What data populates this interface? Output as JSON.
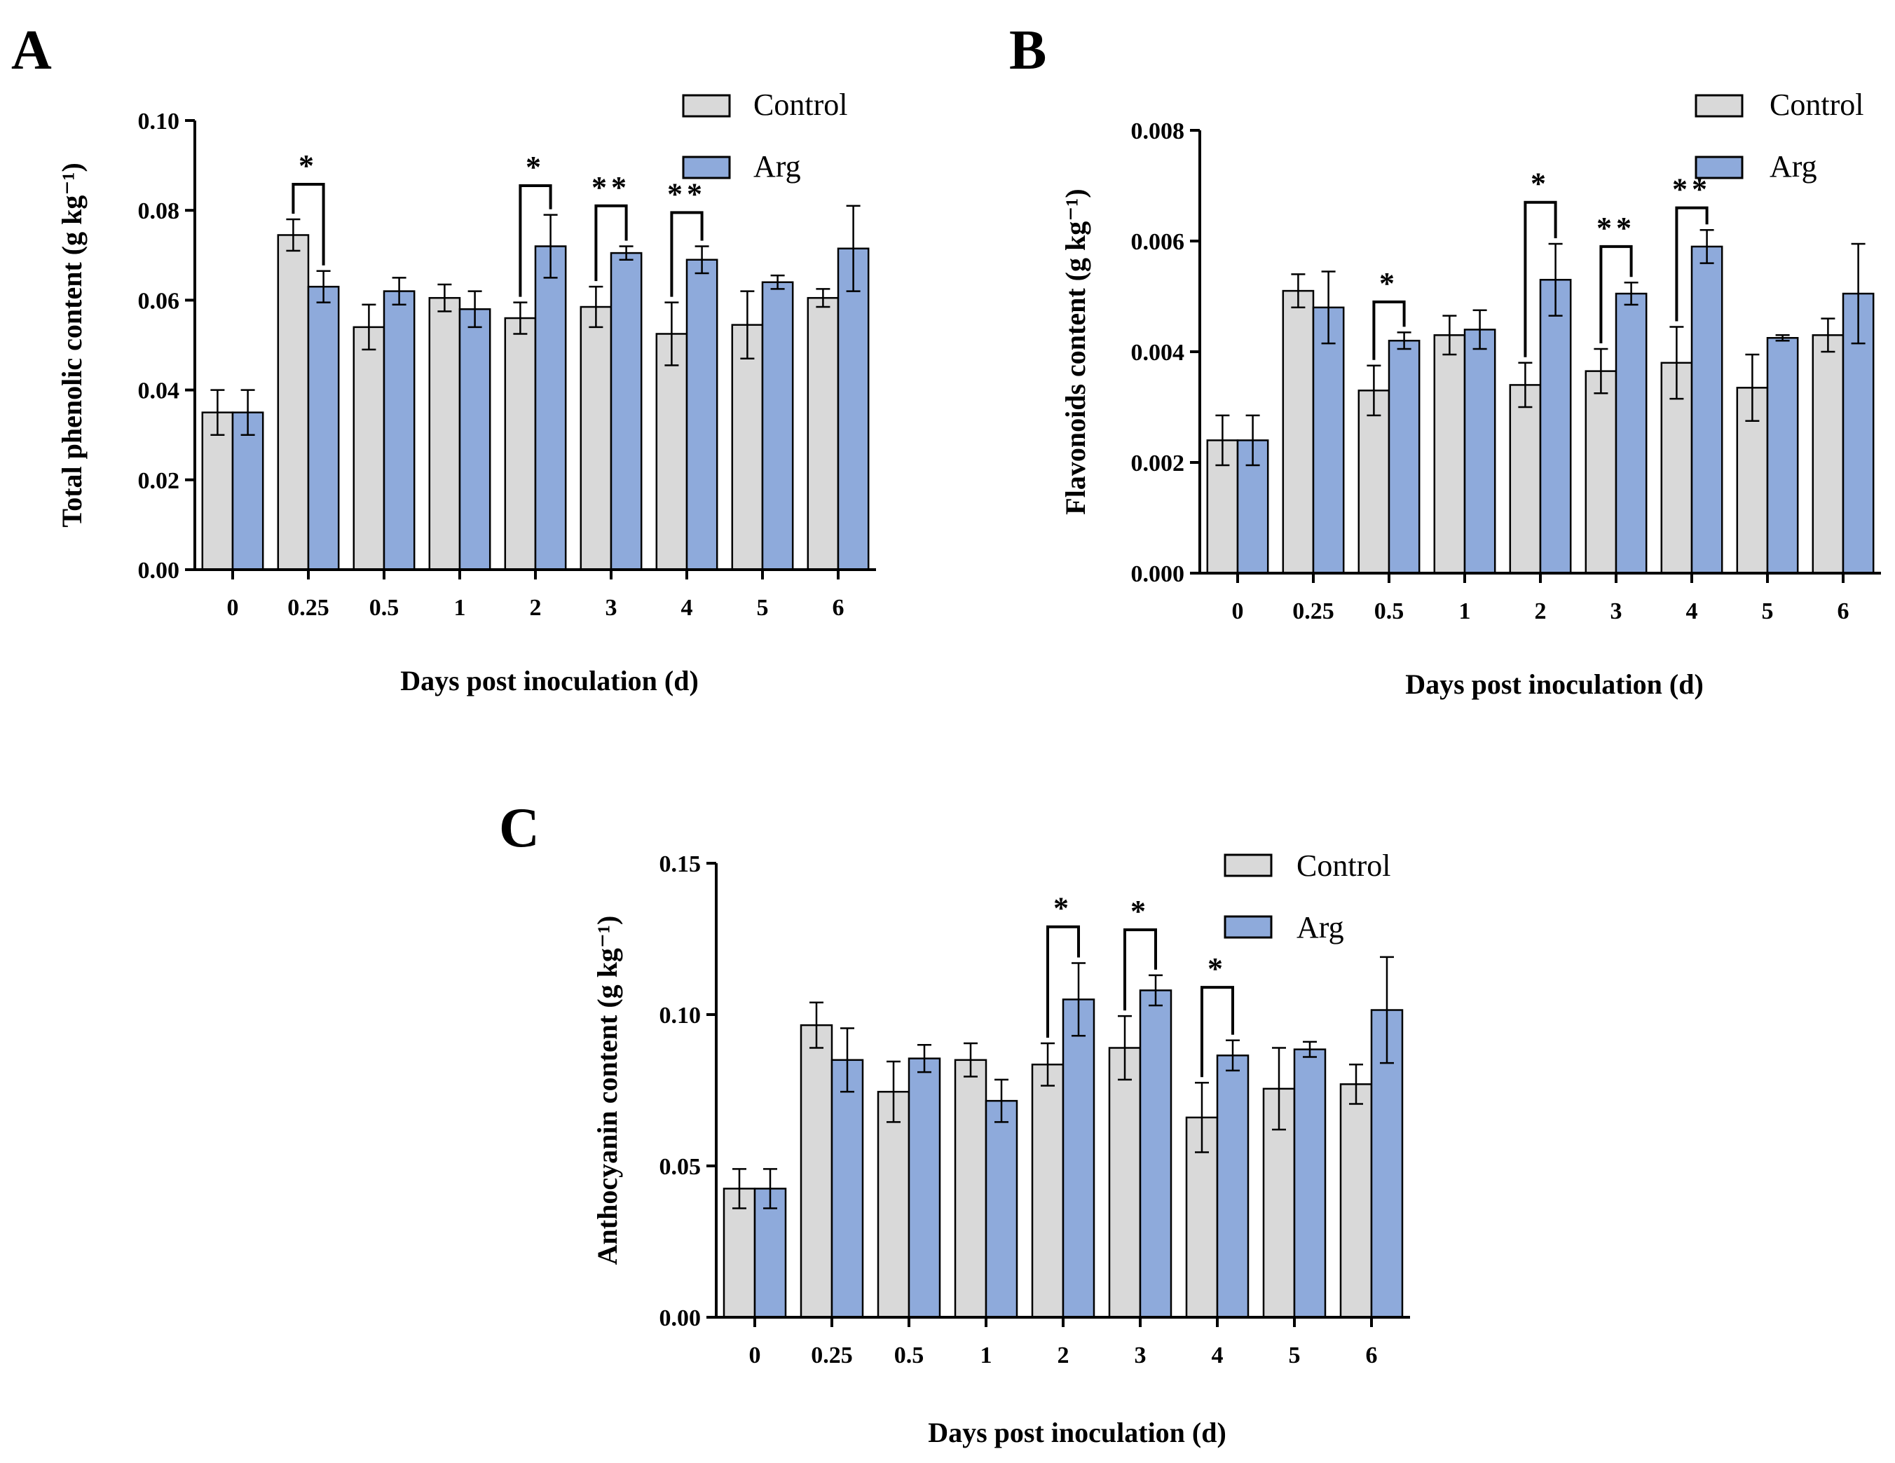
{
  "figure": {
    "panels": [
      {
        "letter": "A"
      },
      {
        "letter": "B"
      },
      {
        "letter": "C"
      }
    ]
  },
  "chart_data": [
    {
      "type": "bar",
      "panel": "A",
      "title": "",
      "xlabel": "Days post inoculation (d)",
      "ylabel": "Total phenolic content (g kg⁻¹)",
      "ylim": [
        0,
        0.1
      ],
      "yticks": [
        0,
        0.02,
        0.04,
        0.06,
        0.08,
        0.1
      ],
      "ytick_labels": [
        "0.00",
        "0.02",
        "0.04",
        "0.06",
        "0.08",
        "0.10"
      ],
      "categories": [
        "0",
        "0.25",
        "0.5",
        "1",
        "2",
        "3",
        "4",
        "5",
        "6"
      ],
      "legend": {
        "placement": "top-right",
        "entries": [
          "Control",
          "Arg"
        ]
      },
      "series": [
        {
          "name": "Control",
          "color": "#d9d9d9",
          "values": [
            0.035,
            0.0745,
            0.054,
            0.0605,
            0.056,
            0.0585,
            0.0525,
            0.0545,
            0.0605
          ],
          "errors": [
            0.005,
            0.0035,
            0.005,
            0.003,
            0.0035,
            0.0045,
            0.007,
            0.0075,
            0.002
          ]
        },
        {
          "name": "Arg",
          "color": "#8eaadb",
          "values": [
            0.035,
            0.063,
            0.062,
            0.058,
            0.072,
            0.0705,
            0.069,
            0.064,
            0.0715
          ],
          "errors": [
            0.005,
            0.0035,
            0.003,
            0.004,
            0.007,
            0.0015,
            0.003,
            0.0015,
            0.0095
          ]
        }
      ],
      "significance": [
        {
          "category": "0.25",
          "label": "*",
          "top": 0.0858
        },
        {
          "category": "2",
          "label": "*",
          "top": 0.0855
        },
        {
          "category": "3",
          "label": "**",
          "top": 0.081
        },
        {
          "category": "4",
          "label": "**",
          "top": 0.0795
        }
      ]
    },
    {
      "type": "bar",
      "panel": "B",
      "title": "",
      "xlabel": "Days post inoculation (d)",
      "ylabel": "Flavonoids content (g kg⁻¹)",
      "ylim": [
        0,
        0.008
      ],
      "yticks": [
        0,
        0.002,
        0.004,
        0.006,
        0.008
      ],
      "ytick_labels": [
        "0.000",
        "0.002",
        "0.004",
        "0.006",
        "0.008"
      ],
      "categories": [
        "0",
        "0.25",
        "0.5",
        "1",
        "2",
        "3",
        "4",
        "5",
        "6"
      ],
      "legend": {
        "placement": "top-right",
        "entries": [
          "Control",
          "Arg"
        ]
      },
      "series": [
        {
          "name": "Control",
          "color": "#d9d9d9",
          "values": [
            0.0024,
            0.0051,
            0.0033,
            0.0043,
            0.0034,
            0.00365,
            0.0038,
            0.00335,
            0.0043
          ],
          "errors": [
            0.00045,
            0.0003,
            0.00045,
            0.00035,
            0.0004,
            0.0004,
            0.00065,
            0.0006,
            0.0003
          ]
        },
        {
          "name": "Arg",
          "color": "#8eaadb",
          "values": [
            0.0024,
            0.0048,
            0.0042,
            0.0044,
            0.0053,
            0.00505,
            0.0059,
            0.00425,
            0.00505
          ],
          "errors": [
            0.00045,
            0.00065,
            0.00015,
            0.00035,
            0.00065,
            0.0002,
            0.0003,
            5e-05,
            0.0009
          ]
        }
      ],
      "significance": [
        {
          "category": "0.5",
          "label": "*",
          "top": 0.0049
        },
        {
          "category": "2",
          "label": "*",
          "top": 0.0067
        },
        {
          "category": "3",
          "label": "**",
          "top": 0.0059
        },
        {
          "category": "4",
          "label": "**",
          "top": 0.0066
        }
      ]
    },
    {
      "type": "bar",
      "panel": "C",
      "title": "",
      "xlabel": "Days post inoculation (d)",
      "ylabel": "Anthocyanin content (g kg⁻¹)",
      "ylim": [
        0,
        0.15
      ],
      "yticks": [
        0,
        0.05,
        0.1,
        0.15
      ],
      "ytick_labels": [
        "0.00",
        "0.05",
        "0.10",
        "0.15"
      ],
      "categories": [
        "0",
        "0.25",
        "0.5",
        "1",
        "2",
        "3",
        "4",
        "5",
        "6"
      ],
      "legend": {
        "placement": "top-right",
        "entries": [
          "Control",
          "Arg"
        ]
      },
      "series": [
        {
          "name": "Control",
          "color": "#d9d9d9",
          "values": [
            0.0425,
            0.0965,
            0.0745,
            0.085,
            0.0835,
            0.089,
            0.066,
            0.0755,
            0.077
          ],
          "errors": [
            0.0065,
            0.0075,
            0.01,
            0.0055,
            0.007,
            0.0105,
            0.0115,
            0.0135,
            0.0065
          ]
        },
        {
          "name": "Arg",
          "color": "#8eaadb",
          "values": [
            0.0425,
            0.085,
            0.0855,
            0.0715,
            0.105,
            0.108,
            0.0865,
            0.0885,
            0.1015
          ],
          "errors": [
            0.0065,
            0.0105,
            0.0045,
            0.007,
            0.012,
            0.005,
            0.005,
            0.0025,
            0.0175
          ]
        }
      ],
      "significance": [
        {
          "category": "2",
          "label": "*",
          "top": 0.129
        },
        {
          "category": "3",
          "label": "*",
          "top": 0.128
        },
        {
          "category": "4",
          "label": "*",
          "top": 0.109
        }
      ]
    }
  ]
}
